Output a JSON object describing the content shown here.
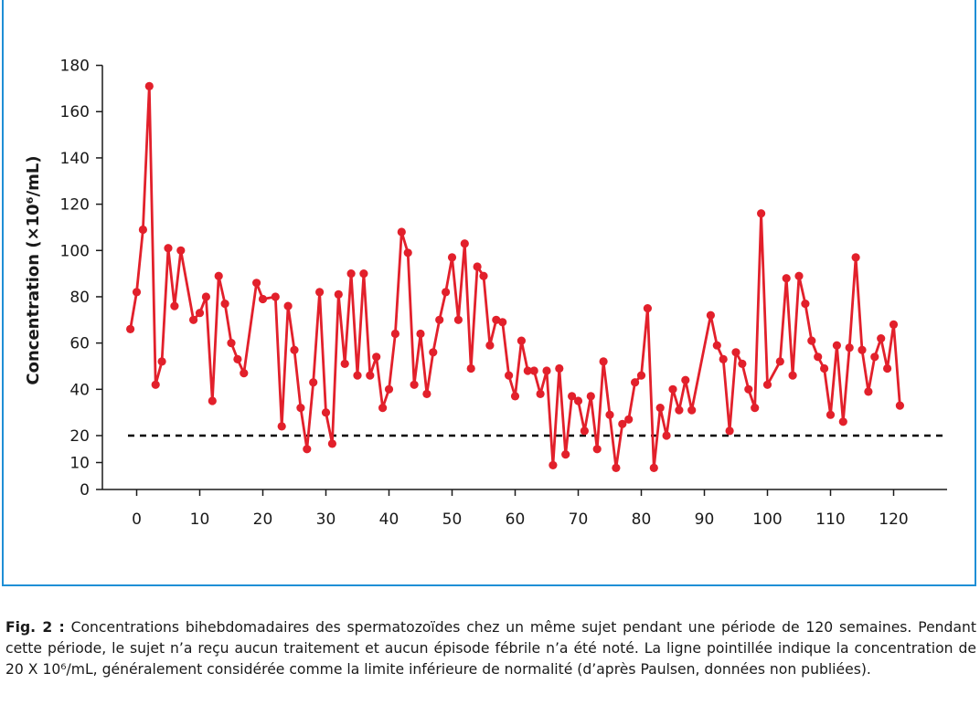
{
  "chart_data": {
    "type": "line",
    "xlabel": "",
    "ylabel": "Concentration (×10⁶/mL)",
    "xlim": [
      -1,
      129
    ],
    "ylim": [
      0,
      180
    ],
    "x_ticks": [
      "0",
      "10",
      "20",
      "30",
      "40",
      "50",
      "60",
      "70",
      "80",
      "90",
      "100",
      "110",
      "120"
    ],
    "x_tick_values": [
      0,
      10,
      20,
      30,
      40,
      50,
      60,
      70,
      80,
      90,
      100,
      110,
      120
    ],
    "y_ticks": [
      "0",
      "10",
      "20",
      "40",
      "60",
      "80",
      "100",
      "120",
      "140",
      "160",
      "180"
    ],
    "y_tick_values": [
      0,
      10,
      20,
      40,
      60,
      80,
      100,
      120,
      140,
      160,
      180
    ],
    "reference_line": {
      "y": 20,
      "style": "dashed",
      "color": "#000000"
    },
    "series": [
      {
        "color": "#e2202b",
        "points": [
          [
            -1,
            66
          ],
          [
            0,
            82
          ],
          [
            1,
            109
          ],
          [
            2,
            171
          ],
          [
            3,
            42
          ],
          [
            4,
            52
          ],
          [
            5,
            101
          ],
          [
            6,
            76
          ],
          [
            7,
            100
          ],
          [
            9,
            70
          ],
          [
            10,
            73
          ],
          [
            11,
            80
          ],
          [
            12,
            35
          ],
          [
            13,
            89
          ],
          [
            14,
            77
          ],
          [
            15,
            60
          ],
          [
            16,
            53
          ],
          [
            17,
            47
          ],
          [
            19,
            86
          ],
          [
            20,
            79
          ],
          [
            22,
            80
          ],
          [
            23,
            24
          ],
          [
            24,
            76
          ],
          [
            25,
            57
          ],
          [
            26,
            32
          ],
          [
            27,
            15
          ],
          [
            28,
            43
          ],
          [
            29,
            82
          ],
          [
            30,
            30
          ],
          [
            31,
            17
          ],
          [
            32,
            81
          ],
          [
            33,
            51
          ],
          [
            34,
            90
          ],
          [
            35,
            46
          ],
          [
            36,
            90
          ],
          [
            37,
            46
          ],
          [
            38,
            54
          ],
          [
            39,
            32
          ],
          [
            40,
            40
          ],
          [
            41,
            64
          ],
          [
            42,
            108
          ],
          [
            43,
            99
          ],
          [
            44,
            42
          ],
          [
            45,
            64
          ],
          [
            46,
            38
          ],
          [
            47,
            56
          ],
          [
            48,
            70
          ],
          [
            49,
            82
          ],
          [
            50,
            97
          ],
          [
            51,
            70
          ],
          [
            52,
            103
          ],
          [
            53,
            49
          ],
          [
            54,
            93
          ],
          [
            55,
            89
          ],
          [
            56,
            59
          ],
          [
            57,
            70
          ],
          [
            58,
            69
          ],
          [
            59,
            46
          ],
          [
            60,
            37
          ],
          [
            61,
            61
          ],
          [
            62,
            48
          ],
          [
            63,
            48
          ],
          [
            64,
            38
          ],
          [
            65,
            48
          ],
          [
            66,
            9
          ],
          [
            67,
            49
          ],
          [
            68,
            13
          ],
          [
            69,
            37
          ],
          [
            70,
            35
          ],
          [
            71,
            22
          ],
          [
            72,
            37
          ],
          [
            73,
            15
          ],
          [
            74,
            52
          ],
          [
            75,
            29
          ],
          [
            76,
            8
          ],
          [
            77,
            25
          ],
          [
            78,
            27
          ],
          [
            79,
            43
          ],
          [
            80,
            46
          ],
          [
            81,
            75
          ],
          [
            82,
            8
          ],
          [
            83,
            32
          ],
          [
            84,
            20
          ],
          [
            85,
            40
          ],
          [
            86,
            31
          ],
          [
            87,
            44
          ],
          [
            88,
            31
          ],
          [
            91,
            72
          ],
          [
            92,
            59
          ],
          [
            93,
            53
          ],
          [
            94,
            22
          ],
          [
            95,
            56
          ],
          [
            96,
            51
          ],
          [
            97,
            40
          ],
          [
            98,
            32
          ],
          [
            99,
            116
          ],
          [
            100,
            42
          ],
          [
            102,
            52
          ],
          [
            103,
            88
          ],
          [
            104,
            46
          ],
          [
            105,
            89
          ],
          [
            106,
            77
          ],
          [
            107,
            61
          ],
          [
            108,
            54
          ],
          [
            109,
            49
          ],
          [
            110,
            29
          ],
          [
            111,
            59
          ],
          [
            112,
            26
          ],
          [
            113,
            58
          ],
          [
            114,
            97
          ],
          [
            115,
            57
          ],
          [
            116,
            39
          ],
          [
            117,
            54
          ],
          [
            118,
            62
          ],
          [
            119,
            49
          ],
          [
            120,
            68
          ],
          [
            121,
            33
          ]
        ]
      }
    ]
  },
  "caption": {
    "label": "Fig. 2 :",
    "text": " Concentrations bihebdomadaires des spermatozoïdes chez un même sujet pendant une période de 120 semaines. Pendant cette période, le sujet n’a reçu aucun traitement et aucun épisode fébrile n’a été noté. La ligne pointillée indique la concentration de 20 X 10⁶/mL, généralement considérée comme la limite inférieure de normalité (d’après Paulsen, données non publiées)."
  }
}
